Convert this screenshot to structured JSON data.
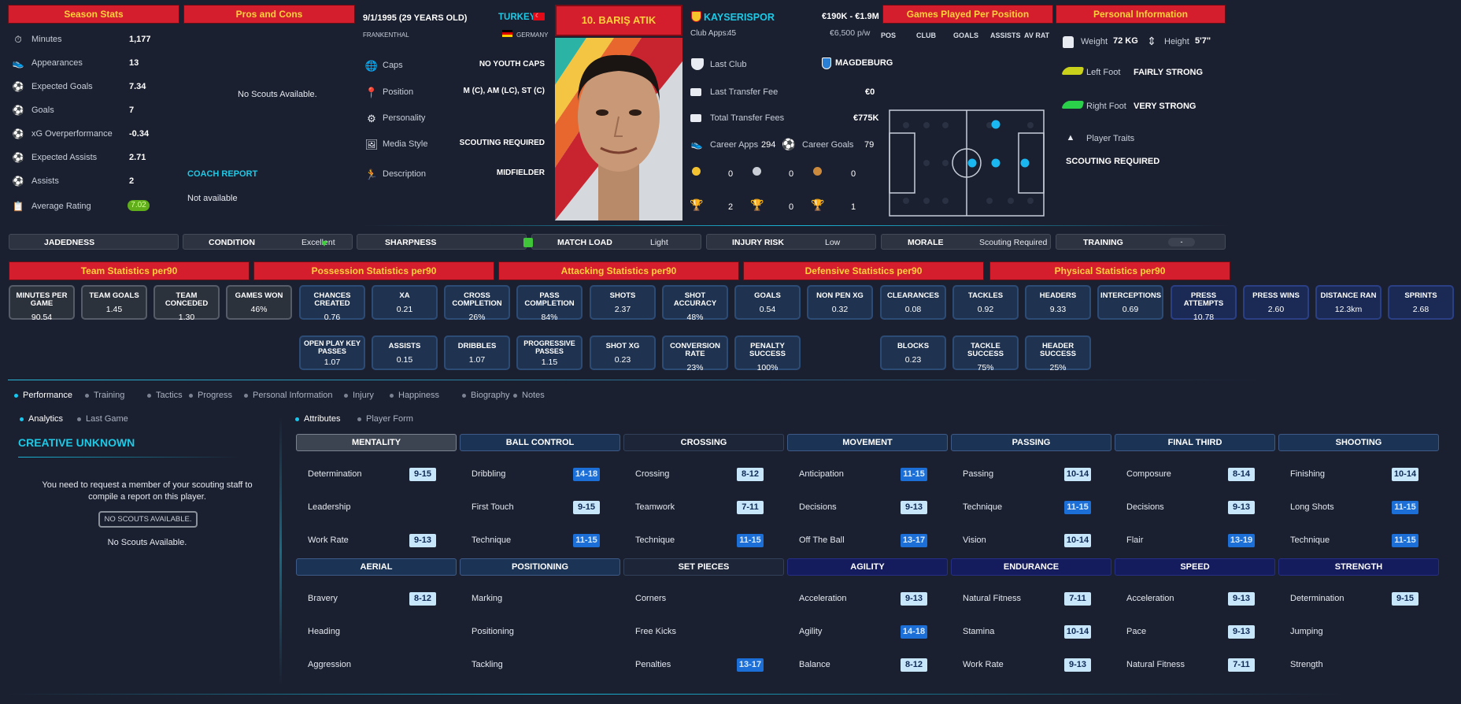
{
  "season_stats": {
    "title": "Season Stats",
    "rows": [
      {
        "label": "Minutes",
        "value": "1,177",
        "icon": "stopwatch-icon"
      },
      {
        "label": "Appearances",
        "value": "13",
        "icon": "boot-icon"
      },
      {
        "label": "Expected Goals",
        "value": "7.34",
        "icon": "xg-icon"
      },
      {
        "label": "Goals",
        "value": "7",
        "icon": "ball-icon"
      },
      {
        "label": "xG Overperformance",
        "value": "-0.34",
        "icon": "xg-icon"
      },
      {
        "label": "Expected Assists",
        "value": "2.71",
        "icon": "xa-icon"
      },
      {
        "label": "Assists",
        "value": "2",
        "icon": "assist-icon"
      },
      {
        "label": "Average Rating",
        "value": "7.02",
        "icon": "clipboard-icon"
      }
    ]
  },
  "pros_cons": {
    "title": "Pros and Cons",
    "no_scouts": "No Scouts Available.",
    "coach_report_title": "COACH REPORT",
    "coach_report_value": "Not available"
  },
  "bio": {
    "dob": "9/1/1995 (29 YEARS OLD)",
    "birthplace": "FRANKENTHAL",
    "nation": "TURKEY",
    "second_nation": "GERMANY",
    "rows": [
      {
        "label": "Caps",
        "value": "NO YOUTH CAPS",
        "icon": "globe-icon"
      },
      {
        "label": "Position",
        "value": "M (C), AM (LC), ST (C)",
        "icon": "pin-icon"
      },
      {
        "label": "Personality",
        "value": "",
        "icon": "gears-icon"
      },
      {
        "label": "Media Style",
        "value": "SCOUTING REQUIRED",
        "icon": "media-icon"
      },
      {
        "label": "Description",
        "value": "MIDFIELDER",
        "icon": "runner-icon"
      }
    ]
  },
  "player": {
    "name": "10. BARIŞ ATIK"
  },
  "club": {
    "name": "KAYSERISPOR",
    "apps_label": "Club Apps:",
    "apps": "45",
    "value_range": "€190K - €1.9M",
    "wage": "€6,500 p/w",
    "last_club_label": "Last Club",
    "last_club": "MAGDEBURG",
    "last_fee_label": "Last Transfer Fee",
    "last_fee": "€0",
    "total_fee_label": "Total Transfer Fees",
    "total_fee": "€775K",
    "career_apps_label": "Career Apps",
    "career_apps": "294",
    "career_goals_label": "Career Goals",
    "career_goals": "79",
    "medals": [
      "0",
      "0",
      "0"
    ],
    "trophies": [
      "2",
      "0",
      "1"
    ]
  },
  "games_per_position": {
    "title": "Games Played Per Position",
    "columns": [
      "POS",
      "CLUB",
      "GOALS",
      "ASSISTS",
      "AV RAT"
    ]
  },
  "personal": {
    "title": "Personal Information",
    "weight_label": "Weight",
    "weight": "72 KG",
    "height_label": "Height",
    "height": "5'7\"",
    "left_foot_label": "Left Foot",
    "left_foot": "FAIRLY STRONG",
    "right_foot_label": "Right Foot",
    "right_foot": "VERY STRONG",
    "traits_label": "Player Traits",
    "traits": "SCOUTING REQUIRED"
  },
  "condition_bar": [
    {
      "key": "JADEDNESS",
      "value": ""
    },
    {
      "key": "CONDITION",
      "value": "Excellent"
    },
    {
      "key": "SHARPNESS",
      "value": ""
    },
    {
      "key": "MATCH LOAD",
      "value": "Light"
    },
    {
      "key": "INJURY RISK",
      "value": "Low"
    },
    {
      "key": "MORALE",
      "value": "Scouting Required"
    },
    {
      "key": "TRAINING",
      "value": "-"
    }
  ],
  "stat_sections": [
    {
      "title": "Team Statistics per90"
    },
    {
      "title": "Possession Statistics per90"
    },
    {
      "title": "Attacking Statistics per90"
    },
    {
      "title": "Defensive Statistics per90"
    },
    {
      "title": "Physical Statistics per90"
    }
  ],
  "stat_boxes": [
    {
      "label": "MINUTES PER GAME",
      "value": "90.54"
    },
    {
      "label": "TEAM GOALS",
      "value": "1.45"
    },
    {
      "label": "TEAM CONCEDED",
      "value": "1.30"
    },
    {
      "label": "GAMES WON",
      "value": "46%"
    },
    {
      "label": "CHANCES CREATED",
      "value": "0.76"
    },
    {
      "label": "XA",
      "value": "0.21"
    },
    {
      "label": "CROSS COMPLETION",
      "value": "26%"
    },
    {
      "label": "PASS COMPLETION",
      "value": "84%"
    },
    {
      "label": "SHOTS",
      "value": "2.37"
    },
    {
      "label": "SHOT ACCURACY",
      "value": "48%"
    },
    {
      "label": "GOALS",
      "value": "0.54"
    },
    {
      "label": "NON PEN XG",
      "value": "0.32"
    },
    {
      "label": "CLEARANCES",
      "value": "0.08"
    },
    {
      "label": "TACKLES",
      "value": "0.92"
    },
    {
      "label": "HEADERS",
      "value": "9.33"
    },
    {
      "label": "INTERCEPTIONS",
      "value": "0.69"
    },
    {
      "label": "PRESS ATTEMPTS",
      "value": "10.78"
    },
    {
      "label": "PRESS WINS",
      "value": "2.60"
    },
    {
      "label": "DISTANCE RAN",
      "value": "12.3km"
    },
    {
      "label": "SPRINTS",
      "value": "2.68"
    },
    {
      "label": "OPEN PLAY KEY PASSES",
      "value": "1.07"
    },
    {
      "label": "ASSISTS",
      "value": "0.15"
    },
    {
      "label": "DRIBBLES",
      "value": "1.07"
    },
    {
      "label": "PROGRESSIVE PASSES",
      "value": "1.15"
    },
    {
      "label": "SHOT XG",
      "value": "0.23"
    },
    {
      "label": "CONVERSION RATE",
      "value": "23%"
    },
    {
      "label": "PENALTY SUCCESS",
      "value": "100%"
    },
    {
      "label": "BLOCKS",
      "value": "0.23"
    },
    {
      "label": "TACKLE SUCCESS",
      "value": "75%"
    },
    {
      "label": "HEADER SUCCESS",
      "value": "25%"
    }
  ],
  "main_tabs": [
    "Performance",
    "Training",
    "Tactics",
    "Progress",
    "Personal Information",
    "Injury",
    "Happiness",
    "Biography",
    "Notes"
  ],
  "left_tabs": [
    "Analytics",
    "Last Game"
  ],
  "analytics": {
    "title": "CREATIVE UNKNOWN",
    "message": "You need to request a member of your scouting staff to compile a report on this player.",
    "button": "NO SCOUTS AVAILABLE.",
    "footer": "No Scouts Available."
  },
  "right_tabs": [
    "Attributes",
    "Player Form"
  ],
  "attr_groups": [
    {
      "title": "MENTALITY",
      "items": [
        {
          "name": "Determination",
          "range": "9-15"
        },
        {
          "name": "Leadership",
          "range": ""
        },
        {
          "name": "Work Rate",
          "range": "9-13"
        }
      ]
    },
    {
      "title": "BALL CONTROL",
      "items": [
        {
          "name": "Dribbling",
          "range": "14-18"
        },
        {
          "name": "First Touch",
          "range": "9-15"
        },
        {
          "name": "Technique",
          "range": "11-15"
        }
      ]
    },
    {
      "title": "CROSSING",
      "items": [
        {
          "name": "Crossing",
          "range": "8-12"
        },
        {
          "name": "Teamwork",
          "range": "7-11"
        },
        {
          "name": "Technique",
          "range": "11-15"
        }
      ]
    },
    {
      "title": "MOVEMENT",
      "items": [
        {
          "name": "Anticipation",
          "range": "11-15"
        },
        {
          "name": "Decisions",
          "range": "9-13"
        },
        {
          "name": "Off The Ball",
          "range": "13-17"
        }
      ]
    },
    {
      "title": "PASSING",
      "items": [
        {
          "name": "Passing",
          "range": "10-14"
        },
        {
          "name": "Technique",
          "range": "11-15"
        },
        {
          "name": "Vision",
          "range": "10-14"
        }
      ]
    },
    {
      "title": "FINAL THIRD",
      "items": [
        {
          "name": "Composure",
          "range": "8-14"
        },
        {
          "name": "Decisions",
          "range": "9-13"
        },
        {
          "name": "Flair",
          "range": "13-19"
        }
      ]
    },
    {
      "title": "SHOOTING",
      "items": [
        {
          "name": "Finishing",
          "range": "10-14"
        },
        {
          "name": "Long Shots",
          "range": "11-15"
        },
        {
          "name": "Technique",
          "range": "11-15"
        }
      ]
    },
    {
      "title": "AERIAL",
      "items": [
        {
          "name": "Bravery",
          "range": "8-12"
        },
        {
          "name": "Heading",
          "range": ""
        },
        {
          "name": "Aggression",
          "range": ""
        }
      ]
    },
    {
      "title": "POSITIONING",
      "items": [
        {
          "name": "Marking",
          "range": ""
        },
        {
          "name": "Positioning",
          "range": ""
        },
        {
          "name": "Tackling",
          "range": ""
        }
      ]
    },
    {
      "title": "SET PIECES",
      "items": [
        {
          "name": "Corners",
          "range": ""
        },
        {
          "name": "Free Kicks",
          "range": ""
        },
        {
          "name": "Penalties",
          "range": "13-17"
        }
      ]
    },
    {
      "title": "AGILITY",
      "items": [
        {
          "name": "Acceleration",
          "range": "9-13"
        },
        {
          "name": "Agility",
          "range": "14-18"
        },
        {
          "name": "Balance",
          "range": "8-12"
        }
      ]
    },
    {
      "title": "ENDURANCE",
      "items": [
        {
          "name": "Natural Fitness",
          "range": "7-11"
        },
        {
          "name": "Stamina",
          "range": "10-14"
        },
        {
          "name": "Work Rate",
          "range": "9-13"
        }
      ]
    },
    {
      "title": "SPEED",
      "items": [
        {
          "name": "Acceleration",
          "range": "9-13"
        },
        {
          "name": "Pace",
          "range": "9-13"
        },
        {
          "name": "Natural Fitness",
          "range": "7-11"
        }
      ]
    },
    {
      "title": "STRENGTH",
      "items": [
        {
          "name": "Determination",
          "range": "9-15"
        },
        {
          "name": "Jumping",
          "range": ""
        },
        {
          "name": "Strength",
          "range": ""
        }
      ]
    }
  ],
  "colors": {
    "header_red": "#d41e2d",
    "header_text": "#ffd23a",
    "accent": "#16c8f0",
    "rating_green": "#5fae1a",
    "range_light": "#c7e6fa",
    "range_dark": "#1c6fd6"
  }
}
